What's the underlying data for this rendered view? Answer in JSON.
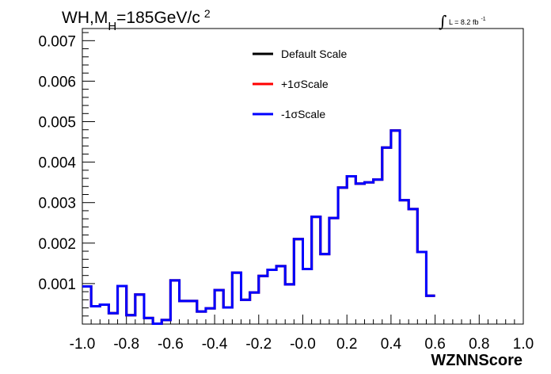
{
  "chart_data": {
    "type": "line",
    "title": {
      "prefix": "WH,M",
      "subscript": "H",
      "mid": "=185GeV/c",
      "superscript": "2"
    },
    "luminosity": {
      "integral": "∫",
      "text": "L = 8.2 fb",
      "superscript": "-1"
    },
    "xlabel": "WZNNScore",
    "ylabel": "",
    "xlim": [
      -1.0,
      1.0
    ],
    "ylim": [
      0,
      0.0073
    ],
    "x_ticks": [
      "-1.0",
      "-0.8",
      "-0.6",
      "-0.4",
      "-0.2",
      "-0.0",
      "0.2",
      "0.4",
      "0.6",
      "0.8",
      "1.0"
    ],
    "y_ticks": [
      "0.001",
      "0.002",
      "0.003",
      "0.004",
      "0.005",
      "0.006",
      "0.007"
    ],
    "bin_edges_start": -1.0,
    "bin_width": 0.04,
    "legend": {
      "placement": "top-center",
      "entries": [
        {
          "name": "Default Scale",
          "color": "#000000"
        },
        {
          "name": "+1σScale",
          "color": "#ff0000"
        },
        {
          "name": "-1σScale",
          "color": "#0000ff"
        }
      ]
    },
    "series": [
      {
        "name": "Default Scale",
        "color": "#000000",
        "values": [
          0.00093,
          0.00044,
          0.00048,
          0.00027,
          0.00094,
          0.00022,
          0.00073,
          0.00015,
          1e-05,
          0.0001,
          0.00108,
          0.00057,
          0.00057,
          0.00031,
          0.00039,
          0.00084,
          0.00041,
          0.00127,
          0.0006,
          0.00078,
          0.00119,
          0.00134,
          0.00143,
          0.00098,
          0.0021,
          0.00136,
          0.00265,
          0.00173,
          0.00262,
          0.00337,
          0.00365,
          0.00347,
          0.0035,
          0.00357,
          0.00436,
          0.00478,
          0.00306,
          0.00284,
          0.00178,
          0.0007
        ]
      },
      {
        "name": "+1σScale",
        "color": "#ff0000",
        "values": [
          0.00093,
          0.00044,
          0.00048,
          0.00027,
          0.00094,
          0.00022,
          0.00073,
          0.00015,
          1e-05,
          0.0001,
          0.00108,
          0.00057,
          0.00057,
          0.00031,
          0.00039,
          0.00084,
          0.00041,
          0.00127,
          0.0006,
          0.00078,
          0.00119,
          0.00134,
          0.00143,
          0.00098,
          0.0021,
          0.00136,
          0.00265,
          0.00173,
          0.00262,
          0.00337,
          0.00365,
          0.00347,
          0.0035,
          0.00357,
          0.00436,
          0.00478,
          0.00306,
          0.00284,
          0.00178,
          0.0007
        ]
      },
      {
        "name": "-1σScale",
        "color": "#0000ff",
        "values": [
          0.00093,
          0.00044,
          0.00048,
          0.00027,
          0.00094,
          0.00022,
          0.00073,
          0.00015,
          1e-05,
          0.0001,
          0.00108,
          0.00057,
          0.00057,
          0.00031,
          0.00039,
          0.00084,
          0.00041,
          0.00127,
          0.0006,
          0.00078,
          0.00119,
          0.00134,
          0.00143,
          0.00098,
          0.0021,
          0.00136,
          0.00265,
          0.00173,
          0.00262,
          0.00337,
          0.00365,
          0.00347,
          0.0035,
          0.00357,
          0.00436,
          0.00478,
          0.00306,
          0.00284,
          0.00178,
          0.0007
        ]
      }
    ]
  }
}
